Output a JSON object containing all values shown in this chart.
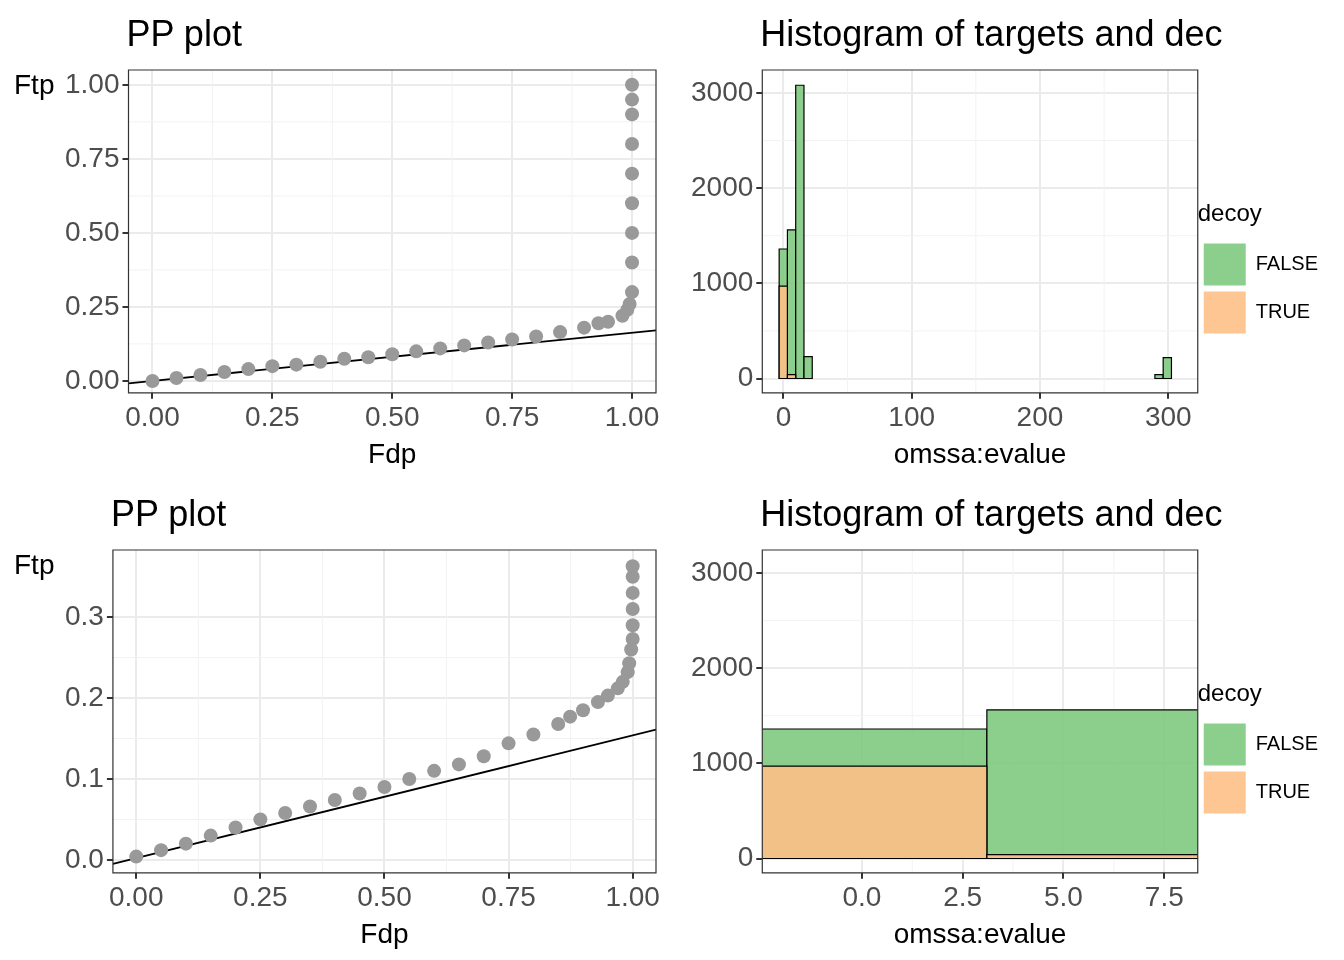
{
  "chart_data": [
    {
      "type": "scatter",
      "title": "PP plot",
      "xlabel": "Fdp",
      "ylabel": "Ftp",
      "xlim": [
        -0.05,
        1.05
      ],
      "ylim": [
        -0.04,
        1.05
      ],
      "xticks": [
        {
          "value": 0,
          "label": "0.00"
        },
        {
          "value": 0.25,
          "label": "0.25"
        },
        {
          "value": 0.5,
          "label": "0.50"
        },
        {
          "value": 0.75,
          "label": "0.75"
        },
        {
          "value": 1,
          "label": "1.00"
        }
      ],
      "yticks": [
        {
          "value": 0,
          "label": "0.00"
        },
        {
          "value": 0.25,
          "label": "0.25"
        },
        {
          "value": 0.5,
          "label": "0.50"
        },
        {
          "value": 0.75,
          "label": "0.75"
        },
        {
          "value": 1,
          "label": "1.00"
        }
      ],
      "grid": true,
      "series": [
        {
          "type": "scatter",
          "color": "#999999",
          "x": [
            0,
            0.05,
            0.1,
            0.15,
            0.2,
            0.25,
            0.3,
            0.35,
            0.4,
            0.45,
            0.5,
            0.55,
            0.6,
            0.65,
            0.7,
            0.75,
            0.8,
            0.85,
            0.9,
            0.93,
            0.95,
            0.98,
            0.99,
            0.995,
            1,
            1,
            1,
            1,
            1,
            1,
            1,
            1,
            1
          ],
          "values": [
            0,
            0.01,
            0.02,
            0.03,
            0.04,
            0.05,
            0.055,
            0.065,
            0.075,
            0.08,
            0.09,
            0.1,
            0.11,
            0.12,
            0.13,
            0.14,
            0.15,
            0.165,
            0.18,
            0.195,
            0.2,
            0.22,
            0.24,
            0.26,
            0.3,
            0.4,
            0.5,
            0.6,
            0.7,
            0.8,
            0.9,
            0.95,
            1
          ]
        },
        {
          "type": "line",
          "color": "#000000",
          "x": [
            -0.05,
            1.05
          ],
          "values": [
            -0.008,
            0.171
          ]
        }
      ]
    },
    {
      "type": "histogram",
      "title": "Histogram of targets and dec",
      "xlabel": "omssa:evalue",
      "legend_title": "decoy",
      "legend": "right",
      "grid": true,
      "xlim": [
        -16.5,
        323
      ],
      "ylim": [
        -150,
        3240
      ],
      "xticks": [
        0,
        100,
        200,
        300
      ],
      "yticks": [
        0,
        1000,
        2000,
        3000
      ],
      "bins": [
        -3.35,
        3.1,
        9.55,
        16,
        22.45,
        289.6,
        296.05,
        302.5
      ],
      "series": [
        {
          "name": "FALSE",
          "color": "#7fc97f",
          "values": [
            1360,
            1560,
            3080,
            230,
            0,
            40,
            220
          ]
        },
        {
          "name": "TRUE",
          "color": "#fdc086",
          "values": [
            970,
            40,
            0,
            0,
            0,
            0,
            0
          ]
        }
      ]
    },
    {
      "type": "scatter",
      "title": "PP plot",
      "xlabel": "Fdp",
      "ylabel": "Ftp",
      "xlim": [
        -0.047,
        1.047
      ],
      "ylim": [
        -0.016,
        0.383
      ],
      "xticks": [
        {
          "value": 0,
          "label": "0.00"
        },
        {
          "value": 0.25,
          "label": "0.25"
        },
        {
          "value": 0.5,
          "label": "0.50"
        },
        {
          "value": 0.75,
          "label": "0.75"
        },
        {
          "value": 1,
          "label": "1.00"
        }
      ],
      "yticks": [
        {
          "value": 0,
          "label": "0.0"
        },
        {
          "value": 0.1,
          "label": "0.1"
        },
        {
          "value": 0.2,
          "label": "0.2"
        },
        {
          "value": 0.3,
          "label": "0.3"
        }
      ],
      "grid": true,
      "series": [
        {
          "type": "scatter",
          "color": "#999999",
          "x": [
            0,
            0.05,
            0.1,
            0.15,
            0.2,
            0.25,
            0.3,
            0.35,
            0.4,
            0.45,
            0.5,
            0.55,
            0.6,
            0.65,
            0.7,
            0.75,
            0.8,
            0.85,
            0.874,
            0.9,
            0.93,
            0.95,
            0.97,
            0.98,
            0.99,
            0.993,
            0.997,
            1,
            1,
            1,
            1,
            1,
            1
          ],
          "values": [
            0.004,
            0.012,
            0.02,
            0.03,
            0.04,
            0.05,
            0.058,
            0.066,
            0.074,
            0.082,
            0.09,
            0.1,
            0.11,
            0.118,
            0.128,
            0.144,
            0.155,
            0.168,
            0.177,
            0.185,
            0.195,
            0.203,
            0.212,
            0.22,
            0.232,
            0.243,
            0.26,
            0.273,
            0.29,
            0.31,
            0.33,
            0.35,
            0.363
          ]
        },
        {
          "type": "line",
          "color": "#000000",
          "x": [
            -0.047,
            1.047
          ],
          "values": [
            -0.005,
            0.161
          ]
        }
      ]
    },
    {
      "type": "histogram",
      "title": "Histogram of targets and dec",
      "xlabel": "omssa:evalue",
      "legend_title": "decoy",
      "legend": "right",
      "grid": true,
      "xlim": [
        -2.47,
        8.33
      ],
      "ylim": [
        -150,
        3240
      ],
      "xticks": [
        {
          "value": 0,
          "label": "0.0"
        },
        {
          "value": 2.5,
          "label": "2.5"
        },
        {
          "value": 5,
          "label": "5.0"
        },
        {
          "value": 7.5,
          "label": "7.5"
        }
      ],
      "yticks": [
        0,
        1000,
        2000,
        3000
      ],
      "bins": [
        -3.35,
        3.1,
        9.55
      ],
      "series": [
        {
          "name": "FALSE",
          "color": "#7fc97f",
          "values": [
            1360,
            1560
          ]
        },
        {
          "name": "TRUE",
          "color": "#fdc086",
          "values": [
            970,
            40
          ]
        }
      ]
    }
  ]
}
